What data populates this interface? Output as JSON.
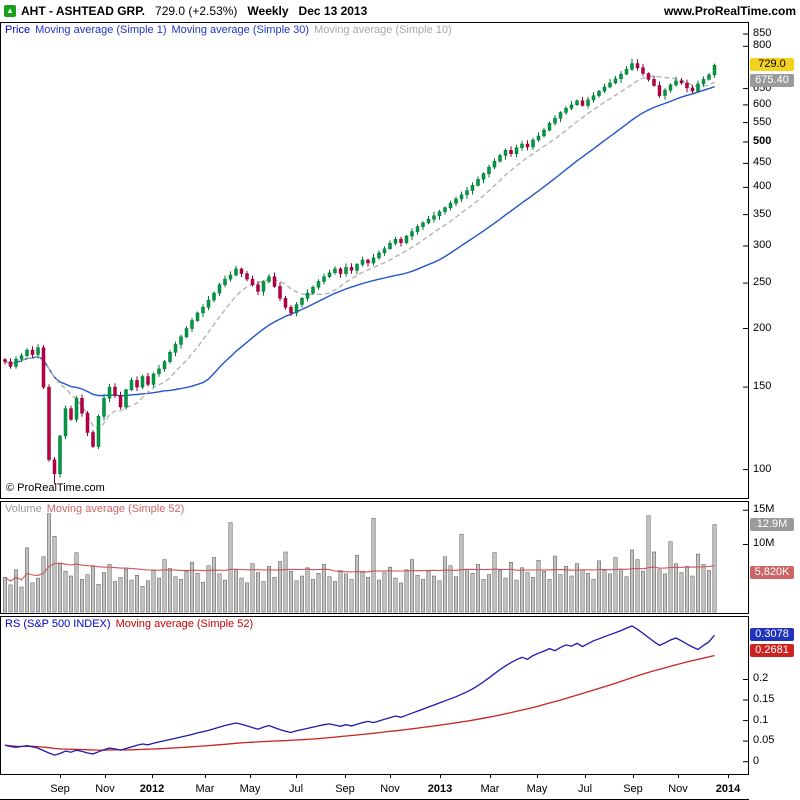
{
  "header": {
    "title": "AHT - ASHTEAD GRP.",
    "quote": "729.0 (+2.53%)",
    "timeframe": "Weekly",
    "date": "Dec 13 2013",
    "site": "www.ProRealTime.com",
    "icon": "up-arrow",
    "icon_color": "#18a018"
  },
  "watermark": "© ProRealTime.com",
  "legends": {
    "price": [
      {
        "text": "Price",
        "color": "#0000cc"
      },
      {
        "text": "Moving average (Simple 1)",
        "color": "#2233cc"
      },
      {
        "text": "Moving average (Simple 30)",
        "color": "#2233cc"
      },
      {
        "text": "Moving average (Simple 10)",
        "color": "#a8a8a8"
      }
    ],
    "volume": [
      {
        "text": "Volume",
        "color": "#999999"
      },
      {
        "text": "Moving average (Simple 52)",
        "color": "#cc6666"
      }
    ],
    "rs": [
      {
        "text": "RS (S&P 500 INDEX)",
        "color": "#0000cc"
      },
      {
        "text": "Moving average (Simple 52)",
        "color": "#cc0000"
      }
    ]
  },
  "axes": {
    "price": {
      "ticks": [
        850,
        800,
        650,
        600,
        550,
        500,
        450,
        400,
        350,
        300,
        250,
        200,
        150,
        100
      ],
      "bold_ticks": [
        500
      ],
      "badges": [
        {
          "text": "729.0",
          "value": 729.0,
          "bg": "#f2d21f",
          "fg": "#000000"
        },
        {
          "text": "675.40",
          "value": 675.4,
          "bg": "#9a9a9a",
          "fg": "#ffffff"
        }
      ]
    },
    "volume": {
      "ticks": [
        {
          "label": "15M",
          "value": 15
        },
        {
          "label": "10M",
          "value": 10
        }
      ],
      "badges": [
        {
          "text": "12.9M",
          "value": 12.9,
          "bg": "#9a9a9a",
          "fg": "#ffffff"
        },
        {
          "text": "5,820K",
          "value": 5.82,
          "bg": "#cc6666",
          "fg": "#ffffff"
        }
      ]
    },
    "rs": {
      "ticks": [
        {
          "label": "0.2",
          "value": 0.2
        },
        {
          "label": "0.15",
          "value": 0.15
        },
        {
          "label": "0.1",
          "value": 0.1
        },
        {
          "label": "0.05",
          "value": 0.05
        },
        {
          "label": "0",
          "value": 0
        }
      ],
      "badges": [
        {
          "text": "0.3078",
          "value": 0.3078,
          "bg": "#2233bb",
          "fg": "#ffffff"
        },
        {
          "text": "0.2681",
          "value": 0.2681,
          "bg": "#cc2222",
          "fg": "#ffffff"
        }
      ]
    }
  },
  "xaxis": {
    "labels": [
      {
        "text": "Sep",
        "pos": 0.08
      },
      {
        "text": "Nov",
        "pos": 0.14
      },
      {
        "text": "2012",
        "pos": 0.203,
        "bold": true
      },
      {
        "text": "Mar",
        "pos": 0.274
      },
      {
        "text": "May",
        "pos": 0.334
      },
      {
        "text": "Jul",
        "pos": 0.395
      },
      {
        "text": "Sep",
        "pos": 0.461
      },
      {
        "text": "Nov",
        "pos": 0.521
      },
      {
        "text": "2013",
        "pos": 0.587,
        "bold": true
      },
      {
        "text": "Mar",
        "pos": 0.654
      },
      {
        "text": "May",
        "pos": 0.717
      },
      {
        "text": "Jul",
        "pos": 0.781
      },
      {
        "text": "Sep",
        "pos": 0.845
      },
      {
        "text": "Nov",
        "pos": 0.905
      },
      {
        "text": "2014",
        "pos": 0.972,
        "bold": true
      }
    ]
  },
  "chart_data": [
    {
      "type": "candlestick",
      "name": "price",
      "symbol": "AHT",
      "timeframe": "weekly",
      "x_range": [
        "Jun 2011",
        "Dec 13 2013"
      ],
      "yscale": "log",
      "ylim": [
        87,
        897
      ],
      "last_close": 729.0,
      "colors": {
        "up_fill": "#009944",
        "up_stroke": "#007733",
        "down_fill": "#bb0044",
        "down_stroke": "#880033"
      },
      "ma": [
        {
          "period": 30,
          "color": "#2255cc",
          "style": "solid",
          "last_value": 656.0
        },
        {
          "period": 10,
          "color": "#b4b4b4",
          "style": "dashed",
          "last_value": 675.4
        }
      ],
      "low_overrides": {
        "9": 93
      },
      "high_overrides": {
        "114": 753
      },
      "closes": [
        170,
        166,
        172,
        175,
        180,
        176,
        182,
        150,
        105,
        98,
        118,
        135,
        128,
        142,
        132,
        120,
        112,
        130,
        142,
        150,
        144,
        136,
        148,
        155,
        150,
        158,
        152,
        160,
        164,
        170,
        178,
        185,
        192,
        200,
        208,
        216,
        222,
        230,
        238,
        248,
        255,
        260,
        268,
        262,
        255,
        248,
        240,
        252,
        258,
        246,
        232,
        222,
        216,
        225,
        232,
        238,
        245,
        252,
        258,
        263,
        268,
        262,
        270,
        266,
        274,
        280,
        276,
        283,
        290,
        296,
        304,
        310,
        305,
        315,
        322,
        330,
        336,
        342,
        348,
        355,
        362,
        370,
        378,
        386,
        394,
        404,
        416,
        428,
        442,
        455,
        468,
        480,
        472,
        486,
        495,
        488,
        505,
        515,
        530,
        548,
        562,
        578,
        590,
        600,
        612,
        598,
        615,
        628,
        642,
        655,
        668,
        682,
        698,
        715,
        735,
        720,
        700,
        680,
        660,
        628,
        645,
        662,
        675,
        668,
        652,
        642,
        665,
        680,
        695,
        729
      ]
    },
    {
      "type": "bar",
      "name": "volume",
      "unit": "millions",
      "ylim": [
        0,
        16.2
      ],
      "last_value": 12.9,
      "ma_period": 52,
      "ma_last_value": 5.82,
      "bar_color": "#c4c4c4",
      "ma_color": "#cc5555",
      "values": [
        5.2,
        4.1,
        6.3,
        3.8,
        9.5,
        4.4,
        5.1,
        8.2,
        14.5,
        11.2,
        7.3,
        6.1,
        5.4,
        8.8,
        4.9,
        5.6,
        6.8,
        4.2,
        5.9,
        7.1,
        4.6,
        5.2,
        6.4,
        4.8,
        5.5,
        3.9,
        4.7,
        6.2,
        5.1,
        7.8,
        6.5,
        5.3,
        4.9,
        6.1,
        7.4,
        5.8,
        4.5,
        6.9,
        8.1,
        5.7,
        4.8,
        13.2,
        6.3,
        5.1,
        4.4,
        7.2,
        5.9,
        4.6,
        6.8,
        5.2,
        7.5,
        8.9,
        6.1,
        4.7,
        5.4,
        6.6,
        4.9,
        5.8,
        7.1,
        5.3,
        4.6,
        6.2,
        5.7,
        4.9,
        8.4,
        6.1,
        5.2,
        13.8,
        4.8,
        5.9,
        6.7,
        5.1,
        4.4,
        6.3,
        7.8,
        5.5,
        4.9,
        6.1,
        5.4,
        4.7,
        8.2,
        6.9,
        5.3,
        11.5,
        6.4,
        5.8,
        7.1,
        4.9,
        5.6,
        8.8,
        6.2,
        5.1,
        7.4,
        4.8,
        6.6,
        5.9,
        5.2,
        7.7,
        6.1,
        4.9,
        8.3,
        5.6,
        6.8,
        5.4,
        7.2,
        6.3,
        5.8,
        4.9,
        7.6,
        6.2,
        5.7,
        8.1,
        6.4,
        5.3,
        9.2,
        7.8,
        6.1,
        14.2,
        8.9,
        6.3,
        5.7,
        10.4,
        7.2,
        5.9,
        6.8,
        5.4,
        8.6,
        7.1,
        6.2,
        12.9
      ]
    },
    {
      "type": "line",
      "name": "rs_vs_sp500",
      "ylim": [
        -0.03,
        0.352
      ],
      "last_value": 0.3078,
      "ma_period": 52,
      "ma_last_value": 0.2681,
      "line_color": "#1a1aae",
      "ma_color": "#cc2222",
      "values": [
        0.04,
        0.037,
        0.035,
        0.037,
        0.039,
        0.036,
        0.033,
        0.027,
        0.021,
        0.016,
        0.02,
        0.026,
        0.023,
        0.028,
        0.025,
        0.021,
        0.019,
        0.024,
        0.029,
        0.033,
        0.031,
        0.028,
        0.032,
        0.036,
        0.04,
        0.043,
        0.041,
        0.045,
        0.048,
        0.051,
        0.054,
        0.057,
        0.06,
        0.063,
        0.066,
        0.07,
        0.073,
        0.076,
        0.08,
        0.084,
        0.088,
        0.091,
        0.094,
        0.091,
        0.087,
        0.083,
        0.079,
        0.084,
        0.088,
        0.083,
        0.078,
        0.074,
        0.071,
        0.075,
        0.078,
        0.081,
        0.084,
        0.087,
        0.09,
        0.092,
        0.089,
        0.086,
        0.09,
        0.087,
        0.091,
        0.095,
        0.098,
        0.095,
        0.099,
        0.103,
        0.107,
        0.111,
        0.108,
        0.113,
        0.118,
        0.123,
        0.128,
        0.133,
        0.138,
        0.143,
        0.148,
        0.153,
        0.158,
        0.164,
        0.17,
        0.177,
        0.185,
        0.194,
        0.204,
        0.214,
        0.224,
        0.233,
        0.241,
        0.248,
        0.254,
        0.249,
        0.258,
        0.264,
        0.269,
        0.275,
        0.27,
        0.278,
        0.284,
        0.281,
        0.288,
        0.28,
        0.287,
        0.294,
        0.299,
        0.304,
        0.309,
        0.314,
        0.319,
        0.325,
        0.33,
        0.322,
        0.312,
        0.302,
        0.292,
        0.283,
        0.289,
        0.296,
        0.301,
        0.294,
        0.286,
        0.279,
        0.273,
        0.283,
        0.292,
        0.3078
      ]
    }
  ]
}
